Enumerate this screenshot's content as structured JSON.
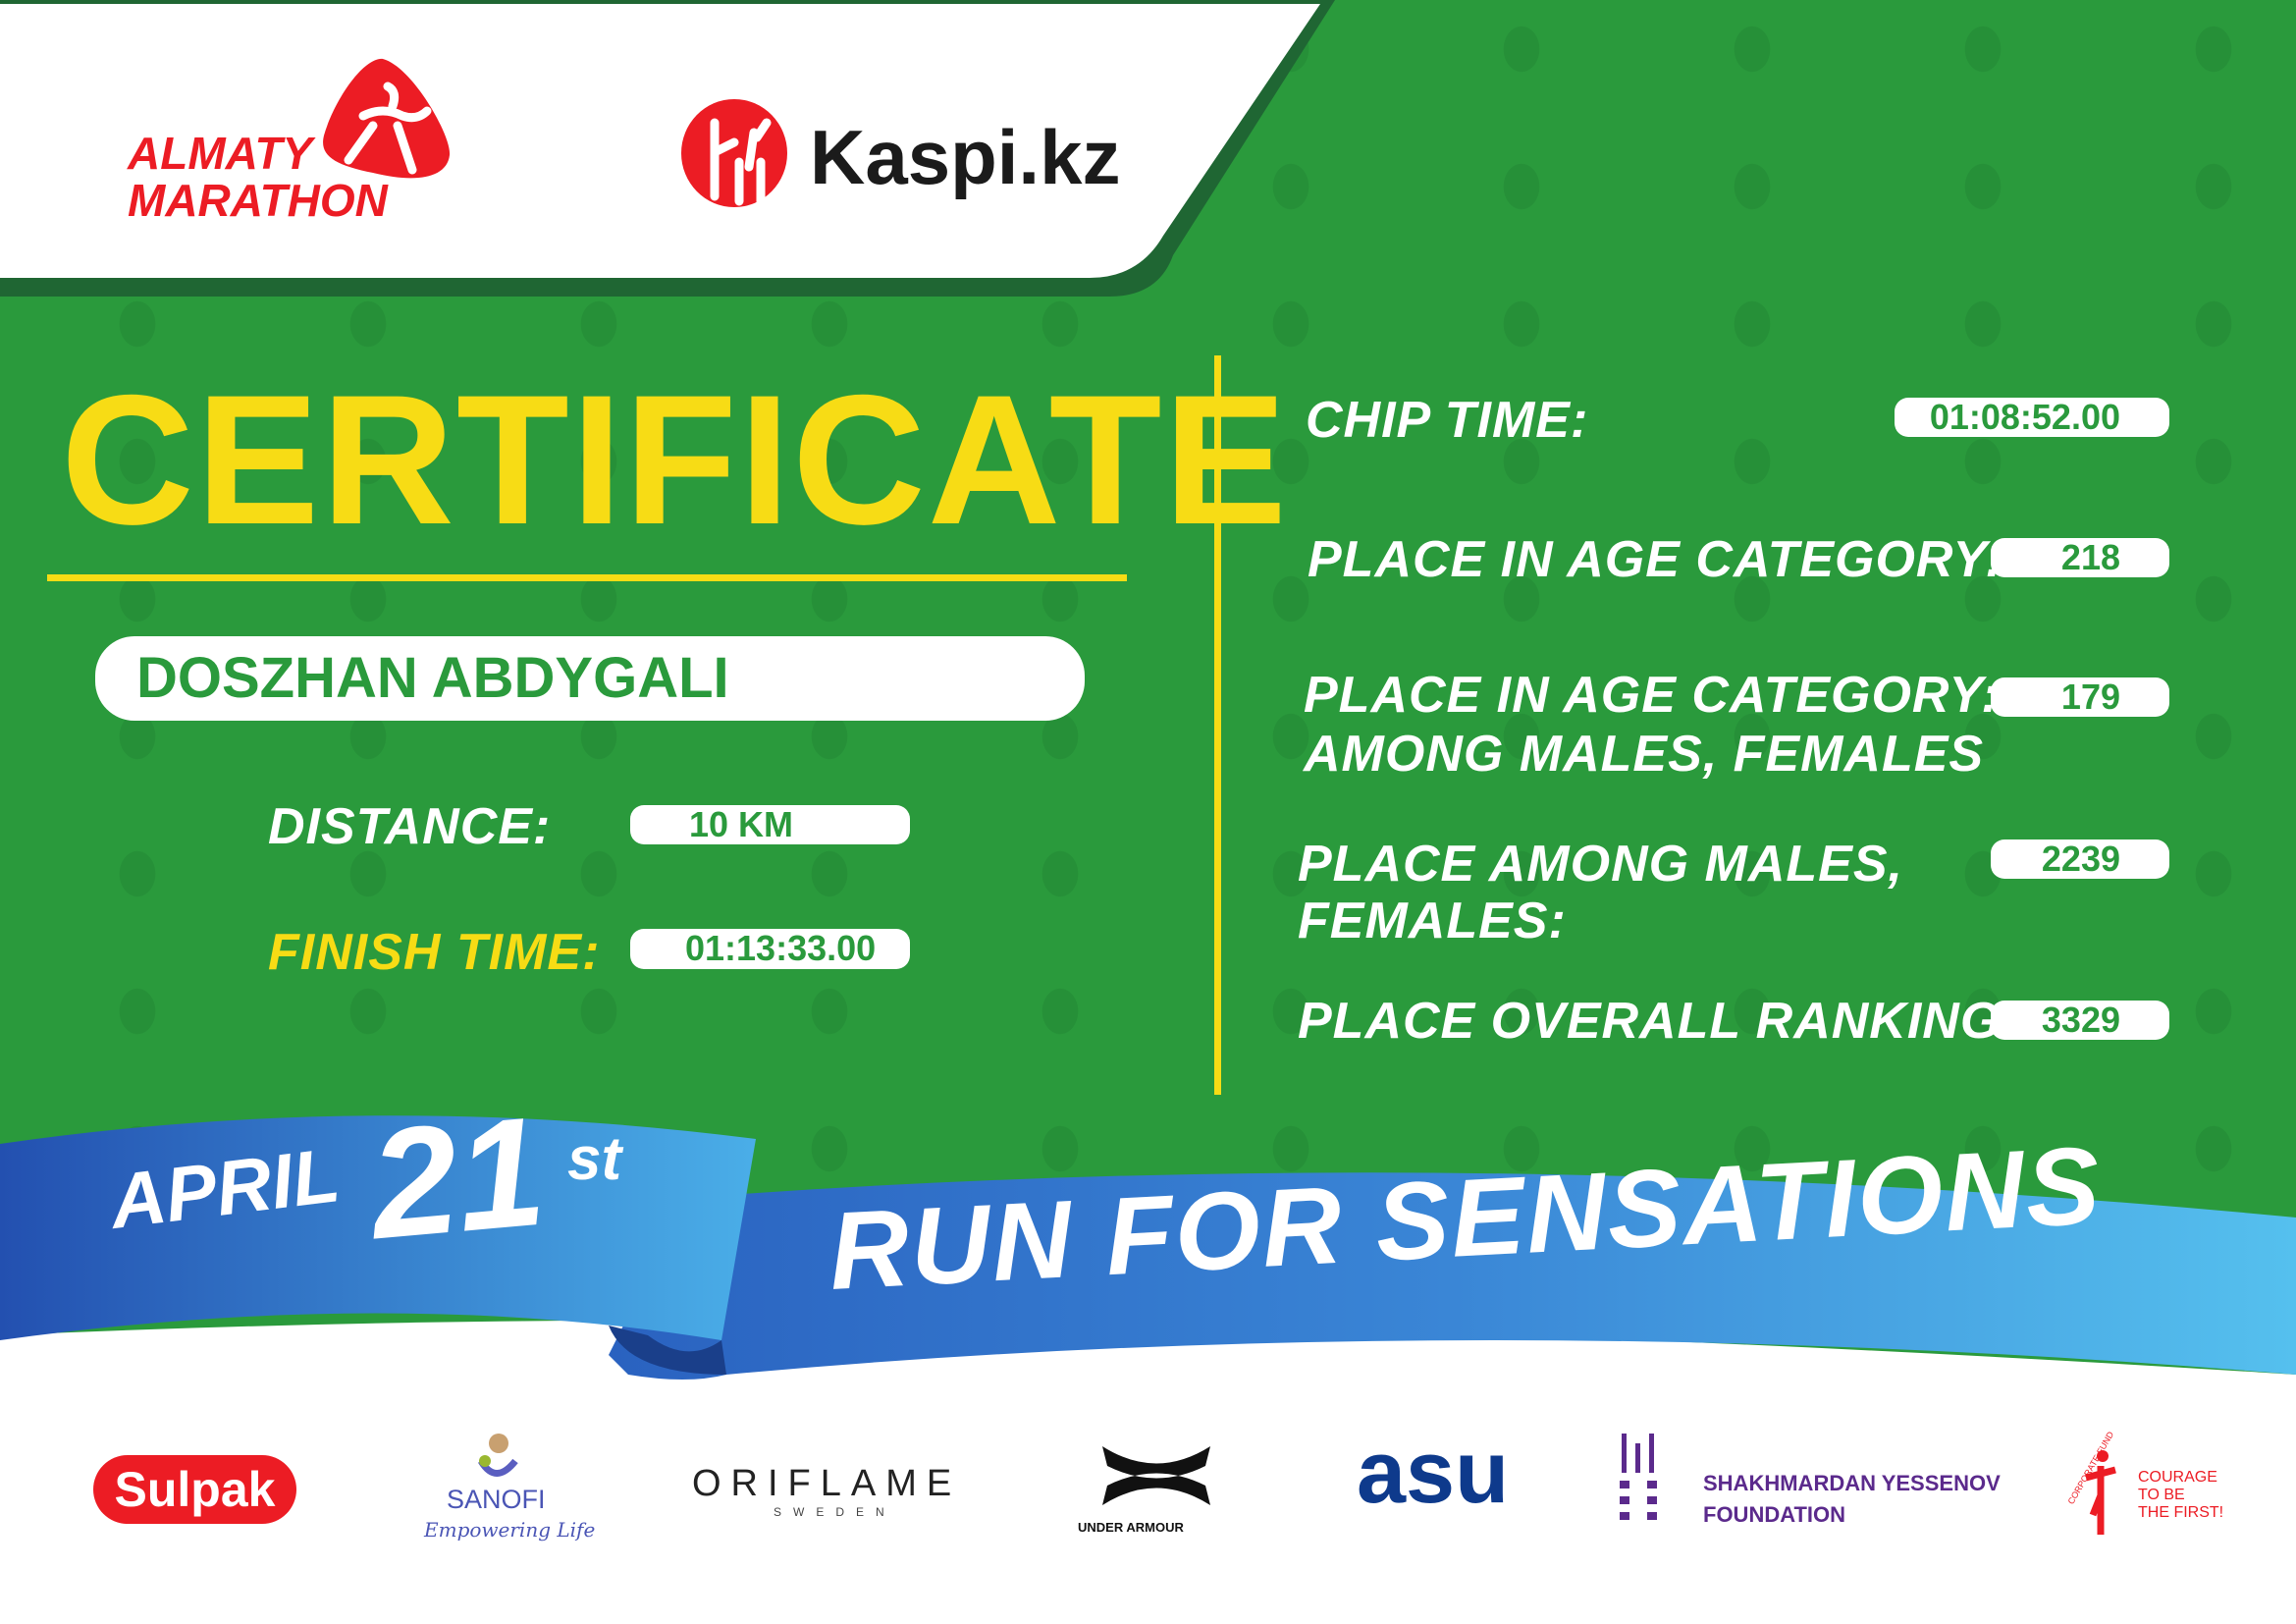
{
  "header": {
    "logo_line1": "ALMATY",
    "logo_line2": "MARATHON",
    "sponsor": "Kaspi.kz"
  },
  "certificate": {
    "title": "CERTIFICATE",
    "name": "DOSZHAN ABDYGALI",
    "distance_label": "DISTANCE:",
    "distance": "10 KM",
    "finish_label": "FINISH TIME:",
    "finish_time": "01:13:33.00"
  },
  "results": {
    "chip_label": "CHIP TIME:",
    "chip_time": "01:08:52.00",
    "age_label": "PLACE IN AGE CATEGORY:",
    "age_place": "218",
    "age_gender_label_1": "PLACE IN AGE CATEGORY:",
    "age_gender_label_2": "AMONG MALES, FEMALES",
    "age_gender_place": "179",
    "gender_label_1": "PLACE AMONG MALES,",
    "gender_label_2": "FEMALES:",
    "gender_place": "2239",
    "overall_label": "PLACE OVERALL RANKING:",
    "overall_place": "3329"
  },
  "banner": {
    "month": "APRIL",
    "day": "21",
    "suffix": "st",
    "slogan": "RUN FOR SENSATIONS"
  },
  "sponsors": {
    "sulpak": "Sulpak",
    "sanofi": "SANOFI",
    "sanofi_tag": "Empowering Life",
    "oriflame": "ORIFLAME",
    "oriflame_sub": "SWEDEN",
    "under_armour": "UNDER ARMOUR",
    "asu": "asu",
    "yessenov_1": "SHAKHMARDAN YESSENOV",
    "yessenov_2": "FOUNDATION",
    "fund_arc": "CORPORATE FUND",
    "fund_1": "COURAGE",
    "fund_2": "TO BE",
    "fund_3": "THE FIRST!"
  },
  "colors": {
    "green": "#2a9a3c",
    "dark_green": "#1f6633",
    "yellow": "#f7dc15",
    "red": "#ec1c24",
    "blue": "#2f7fd0"
  }
}
